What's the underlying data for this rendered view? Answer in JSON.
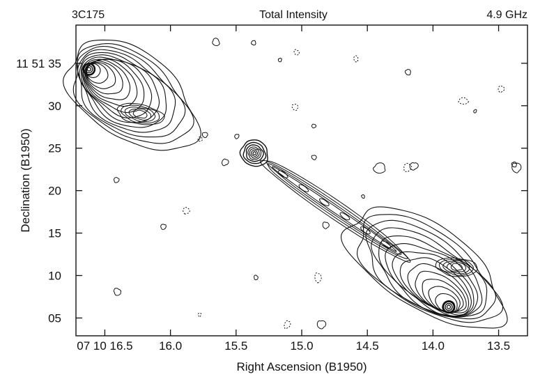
{
  "chart_data": {
    "type": "contour",
    "source": "3C175",
    "title": "Total Intensity",
    "frequency": "4.9 GHz",
    "xlabel": "Right Ascension (B1950)",
    "ylabel": "Declination (B1950)",
    "x_ticks": [
      {
        "value": 16.5,
        "label": "07 10 16.5"
      },
      {
        "value": 16.0,
        "label": "16.0"
      },
      {
        "value": 15.5,
        "label": "15.5"
      },
      {
        "value": 15.0,
        "label": "15.0"
      },
      {
        "value": 14.5,
        "label": "14.5"
      },
      {
        "value": 14.0,
        "label": "14.0"
      },
      {
        "value": 13.5,
        "label": "13.5"
      }
    ],
    "y_ticks": [
      {
        "value": 35,
        "label": "11 51 35"
      },
      {
        "value": 30,
        "label": "30"
      },
      {
        "value": 25,
        "label": "25"
      },
      {
        "value": 20,
        "label": "20"
      },
      {
        "value": 15,
        "label": "15"
      },
      {
        "value": 10,
        "label": "10"
      },
      {
        "value": 5,
        "label": "05"
      }
    ],
    "x_range": [
      16.72,
      13.28
    ],
    "y_range": [
      2.9,
      39.5
    ],
    "grid": false,
    "components": [
      {
        "name": "north-lobe",
        "ra": 16.35,
        "dec": 31.5,
        "levels": 14
      },
      {
        "name": "north-hotspot",
        "ra": 16.62,
        "dec": 34.3
      },
      {
        "name": "core",
        "ra": 15.36,
        "dec": 24.4
      },
      {
        "name": "jet",
        "ra_start": 15.3,
        "dec_start": 23.6,
        "ra_end": 14.2,
        "dec_end": 12.0
      },
      {
        "name": "south-lobe",
        "ra": 13.92,
        "dec": 9.8,
        "levels": 14
      },
      {
        "name": "south-hotspot",
        "ra": 13.88,
        "dec": 6.3
      }
    ]
  },
  "colors": {
    "contour": "#111111",
    "background": "#ffffff"
  }
}
